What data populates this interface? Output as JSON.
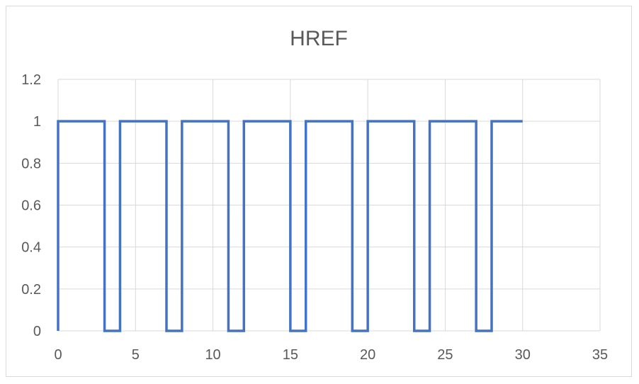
{
  "chart_data": {
    "type": "line",
    "title": "HREF",
    "xlabel": "",
    "ylabel": "",
    "xlim": [
      0,
      35
    ],
    "ylim": [
      0,
      1.2
    ],
    "x_ticks": [
      "0",
      "5",
      "10",
      "15",
      "20",
      "25",
      "30",
      "35"
    ],
    "y_ticks": [
      "0",
      "0.2",
      "0.4",
      "0.6",
      "0.8",
      "1",
      "1.2"
    ],
    "grid": true,
    "legend": "none",
    "line_color": "#4472C4",
    "series": [
      {
        "points": [
          [
            0,
            0
          ],
          [
            0,
            1
          ],
          [
            3,
            1
          ],
          [
            3,
            0
          ],
          [
            4,
            0
          ],
          [
            4,
            1
          ],
          [
            7,
            1
          ],
          [
            7,
            0
          ],
          [
            8,
            0
          ],
          [
            8,
            1
          ],
          [
            11,
            1
          ],
          [
            11,
            0
          ],
          [
            12,
            0
          ],
          [
            12,
            1
          ],
          [
            15,
            1
          ],
          [
            15,
            0
          ],
          [
            16,
            0
          ],
          [
            16,
            1
          ],
          [
            19,
            1
          ],
          [
            19,
            0
          ],
          [
            20,
            0
          ],
          [
            20,
            1
          ],
          [
            23,
            1
          ],
          [
            23,
            0
          ],
          [
            24,
            0
          ],
          [
            24,
            1
          ],
          [
            27,
            1
          ],
          [
            27,
            0
          ],
          [
            28,
            0
          ],
          [
            28,
            1
          ],
          [
            30,
            1
          ]
        ]
      }
    ]
  }
}
